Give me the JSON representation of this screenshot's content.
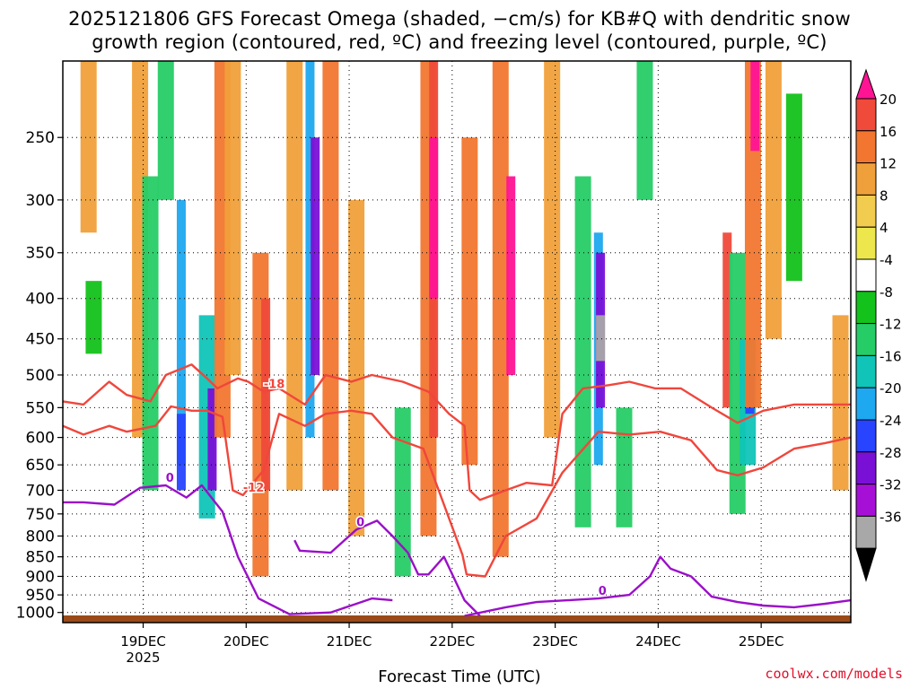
{
  "title_line1": "2025121806 GFS Forecast Omega (shaded, −cm/s) for KB#Q with dendritic snow",
  "title_line2": "growth region (contoured, red, ºC) and freezing level (contoured, purple, ºC)",
  "xlabel": "Forecast Time (UTC)",
  "watermark": "coolwx.com/models",
  "chart_data": {
    "type": "heatmap",
    "title": "2025121806 GFS Forecast Omega (shaded, −cm/s) for KB#Q with dendritic snow growth region (contoured, red, ºC) and freezing level (contoured, purple, ºC)",
    "xlabel": "Forecast Time (UTC)",
    "ylabel": "Pressure (hPa)",
    "x_range_days": [
      0,
      7.65
    ],
    "x_ticks": [
      {
        "d": 0.78,
        "label": "19DEC",
        "sub": "2025"
      },
      {
        "d": 1.78,
        "label": "20DEC"
      },
      {
        "d": 2.78,
        "label": "21DEC"
      },
      {
        "d": 3.78,
        "label": "22DEC"
      },
      {
        "d": 4.78,
        "label": "23DEC"
      },
      {
        "d": 5.78,
        "label": "24DEC"
      },
      {
        "d": 6.78,
        "label": "25DEC"
      }
    ],
    "y_ticks": [
      250,
      300,
      350,
      400,
      450,
      500,
      550,
      600,
      650,
      700,
      750,
      800,
      850,
      900,
      950,
      1000
    ],
    "y_range_hpa": [
      200,
      1030
    ],
    "colorbar": {
      "labels": [
        "20",
        "16",
        "12",
        "8",
        "4",
        "-4",
        "-8",
        "-12",
        "-16",
        "-20",
        "-24",
        "-28",
        "-32",
        "-36"
      ],
      "colors": [
        "#ff1493",
        "#ef4a3a",
        "#f2762f",
        "#f0a03a",
        "#f2cc4f",
        "#ede74d",
        "#ffffff",
        "#13c21a",
        "#26cc66",
        "#10c4b8",
        "#1ea8ef",
        "#2844ff",
        "#7a10d6",
        "#a610d6",
        "#a8a8a8",
        "#000000"
      ]
    },
    "omega_cells": [
      {
        "d": 0.25,
        "p0": 200,
        "p1": 330,
        "v": 8
      },
      {
        "d": 0.3,
        "p0": 380,
        "p1": 470,
        "v": -4
      },
      {
        "d": 0.75,
        "p0": 200,
        "p1": 600,
        "v": 8
      },
      {
        "d": 0.85,
        "p0": 280,
        "p1": 700,
        "v": -8
      },
      {
        "d": 1.0,
        "p0": 200,
        "p1": 300,
        "v": -8
      },
      {
        "d": 1.15,
        "p0": 300,
        "p1": 650,
        "v": -16
      },
      {
        "d": 1.15,
        "p0": 560,
        "p1": 700,
        "v": -20
      },
      {
        "d": 1.4,
        "p0": 420,
        "p1": 760,
        "v": -12
      },
      {
        "d": 1.45,
        "p0": 520,
        "p1": 700,
        "v": -24
      },
      {
        "d": 1.55,
        "p0": 200,
        "p1": 600,
        "v": 12
      },
      {
        "d": 1.65,
        "p0": 200,
        "p1": 500,
        "v": 8
      },
      {
        "d": 1.92,
        "p0": 350,
        "p1": 900,
        "v": 12
      },
      {
        "d": 1.97,
        "p0": 400,
        "p1": 700,
        "v": 16
      },
      {
        "d": 2.25,
        "p0": 200,
        "p1": 700,
        "v": 8
      },
      {
        "d": 2.4,
        "p0": 200,
        "p1": 600,
        "v": -16
      },
      {
        "d": 2.45,
        "p0": 250,
        "p1": 500,
        "v": -24
      },
      {
        "d": 2.6,
        "p0": 200,
        "p1": 700,
        "v": 12
      },
      {
        "d": 2.85,
        "p0": 300,
        "p1": 800,
        "v": 8
      },
      {
        "d": 3.3,
        "p0": 550,
        "p1": 900,
        "v": -8
      },
      {
        "d": 3.55,
        "p0": 200,
        "p1": 800,
        "v": 12
      },
      {
        "d": 3.6,
        "p0": 200,
        "p1": 600,
        "v": 16
      },
      {
        "d": 3.6,
        "p0": 250,
        "p1": 400,
        "v": 20
      },
      {
        "d": 3.95,
        "p0": 250,
        "p1": 650,
        "v": 12
      },
      {
        "d": 4.25,
        "p0": 200,
        "p1": 850,
        "v": 12
      },
      {
        "d": 4.35,
        "p0": 280,
        "p1": 500,
        "v": 20
      },
      {
        "d": 4.75,
        "p0": 200,
        "p1": 600,
        "v": 8
      },
      {
        "d": 5.05,
        "p0": 280,
        "p1": 780,
        "v": -8
      },
      {
        "d": 5.2,
        "p0": 330,
        "p1": 650,
        "v": -16
      },
      {
        "d": 5.22,
        "p0": 350,
        "p1": 550,
        "v": -24
      },
      {
        "d": 5.22,
        "p0": 420,
        "p1": 480,
        "v": -32
      },
      {
        "d": 5.45,
        "p0": 550,
        "p1": 780,
        "v": -8
      },
      {
        "d": 5.65,
        "p0": 200,
        "p1": 300,
        "v": -8
      },
      {
        "d": 6.45,
        "p0": 330,
        "p1": 550,
        "v": 16
      },
      {
        "d": 6.55,
        "p0": 350,
        "p1": 750,
        "v": -8
      },
      {
        "d": 6.65,
        "p0": 450,
        "p1": 650,
        "v": -12
      },
      {
        "d": 6.67,
        "p0": 500,
        "p1": 560,
        "v": -20
      },
      {
        "d": 6.7,
        "p0": 200,
        "p1": 550,
        "v": 12
      },
      {
        "d": 6.72,
        "p0": 200,
        "p1": 260,
        "v": 20
      },
      {
        "d": 6.9,
        "p0": 200,
        "p1": 450,
        "v": 8
      },
      {
        "d": 7.1,
        "p0": 220,
        "p1": 380,
        "v": -4
      },
      {
        "d": 7.55,
        "p0": 420,
        "p1": 700,
        "v": 8
      }
    ],
    "contours": [
      {
        "label": "-18",
        "color": "#f0463c",
        "points": [
          [
            0,
            540
          ],
          [
            0.2,
            545
          ],
          [
            0.45,
            510
          ],
          [
            0.62,
            530
          ],
          [
            0.85,
            540
          ],
          [
            1.0,
            500
          ],
          [
            1.25,
            485
          ],
          [
            1.4,
            505
          ],
          [
            1.5,
            520
          ],
          [
            1.7,
            505
          ],
          [
            1.8,
            510
          ],
          [
            1.95,
            525
          ],
          [
            2.1,
            520
          ],
          [
            2.35,
            545
          ],
          [
            2.55,
            500
          ],
          [
            2.8,
            510
          ],
          [
            3.0,
            500
          ],
          [
            3.3,
            510
          ],
          [
            3.55,
            525
          ],
          [
            3.75,
            560
          ],
          [
            3.9,
            580
          ],
          [
            3.95,
            700
          ],
          [
            4.05,
            720
          ],
          [
            4.3,
            700
          ],
          [
            4.5,
            685
          ],
          [
            4.75,
            690
          ],
          [
            4.85,
            560
          ],
          [
            5.05,
            520
          ],
          [
            5.3,
            515
          ],
          [
            5.5,
            510
          ],
          [
            5.75,
            520
          ],
          [
            6.0,
            520
          ],
          [
            6.3,
            550
          ],
          [
            6.55,
            575
          ],
          [
            6.8,
            555
          ],
          [
            7.1,
            545
          ],
          [
            7.4,
            545
          ],
          [
            7.65,
            545
          ]
        ]
      },
      {
        "label": "-12",
        "color": "#f0463c",
        "points": [
          [
            0,
            580
          ],
          [
            0.2,
            595
          ],
          [
            0.45,
            580
          ],
          [
            0.62,
            590
          ],
          [
            0.9,
            580
          ],
          [
            1.05,
            548
          ],
          [
            1.25,
            555
          ],
          [
            1.4,
            555
          ],
          [
            1.55,
            565
          ],
          [
            1.65,
            700
          ],
          [
            1.75,
            710
          ],
          [
            1.95,
            660
          ],
          [
            2.1,
            560
          ],
          [
            2.35,
            580
          ],
          [
            2.55,
            560
          ],
          [
            2.8,
            555
          ],
          [
            3.0,
            560
          ],
          [
            3.2,
            600
          ],
          [
            3.5,
            620
          ],
          [
            3.75,
            760
          ],
          [
            3.88,
            845
          ],
          [
            3.92,
            895
          ],
          [
            4.1,
            900
          ],
          [
            4.3,
            800
          ],
          [
            4.6,
            760
          ],
          [
            4.85,
            665
          ],
          [
            5.2,
            590
          ],
          [
            5.5,
            595
          ],
          [
            5.8,
            590
          ],
          [
            6.1,
            605
          ],
          [
            6.35,
            660
          ],
          [
            6.55,
            670
          ],
          [
            6.8,
            655
          ],
          [
            7.1,
            620
          ],
          [
            7.4,
            610
          ],
          [
            7.65,
            600
          ]
        ]
      },
      {
        "label": "0",
        "color": "#9a10c8",
        "points": [
          [
            0,
            725
          ],
          [
            0.2,
            725
          ],
          [
            0.5,
            730
          ],
          [
            0.75,
            695
          ],
          [
            1.0,
            690
          ],
          [
            1.2,
            715
          ],
          [
            1.35,
            690
          ],
          [
            1.55,
            745
          ],
          [
            1.7,
            850
          ],
          [
            1.9,
            960
          ],
          [
            2.2,
            1005
          ],
          [
            2.6,
            1000
          ],
          [
            2.85,
            975
          ],
          [
            3.0,
            960
          ],
          [
            3.2,
            965
          ]
        ]
      },
      {
        "label": "0",
        "color": "#9a10c8",
        "points": [
          [
            2.25,
            810
          ],
          [
            2.3,
            835
          ],
          [
            2.6,
            840
          ],
          [
            2.85,
            785
          ],
          [
            3.05,
            765
          ],
          [
            3.2,
            800
          ],
          [
            3.35,
            840
          ],
          [
            3.45,
            895
          ],
          [
            3.55,
            895
          ],
          [
            3.7,
            850
          ],
          [
            3.9,
            965
          ],
          [
            4.05,
            1010
          ]
        ]
      },
      {
        "label": "0",
        "color": "#9a10c8",
        "points": [
          [
            3.9,
            1010
          ],
          [
            4.3,
            985
          ],
          [
            4.6,
            970
          ],
          [
            4.9,
            965
          ],
          [
            5.2,
            960
          ],
          [
            5.5,
            950
          ],
          [
            5.7,
            900
          ],
          [
            5.8,
            850
          ],
          [
            5.9,
            880
          ],
          [
            6.1,
            900
          ],
          [
            6.3,
            955
          ],
          [
            6.55,
            970
          ],
          [
            6.8,
            980
          ],
          [
            7.1,
            985
          ],
          [
            7.4,
            975
          ],
          [
            7.65,
            965
          ]
        ]
      }
    ]
  }
}
